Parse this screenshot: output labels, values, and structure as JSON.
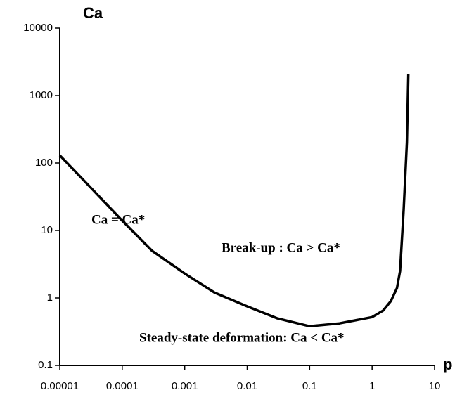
{
  "chart_data": {
    "type": "line",
    "y_label": "Ca",
    "x_label": "p",
    "annotations": [
      "Ca = Ca*",
      "Break-up : Ca > Ca*",
      "Steady-state deformation: Ca < Ca*"
    ],
    "x": [
      1e-05,
      3e-05,
      0.0001,
      0.0003,
      0.001,
      0.003,
      0.01,
      0.03,
      0.1,
      0.3,
      1,
      1.5,
      2,
      2.5,
      2.8,
      3.2,
      3.6,
      3.8
    ],
    "series": [
      {
        "color": "#000000",
        "values": [
          130,
          45,
          14,
          5,
          2.3,
          1.2,
          0.75,
          0.5,
          0.38,
          0.42,
          0.52,
          0.65,
          0.9,
          1.4,
          2.5,
          20,
          200,
          2100
        ]
      }
    ],
    "xlim": [
      1e-05,
      10
    ],
    "ylim": [
      0.1,
      10000
    ],
    "xticks": [
      1e-05,
      0.0001,
      0.001,
      0.01,
      0.1,
      1,
      10
    ],
    "yticks": [
      0.1,
      1,
      10,
      100,
      1000,
      10000
    ],
    "xscale": "log",
    "yscale": "log"
  }
}
